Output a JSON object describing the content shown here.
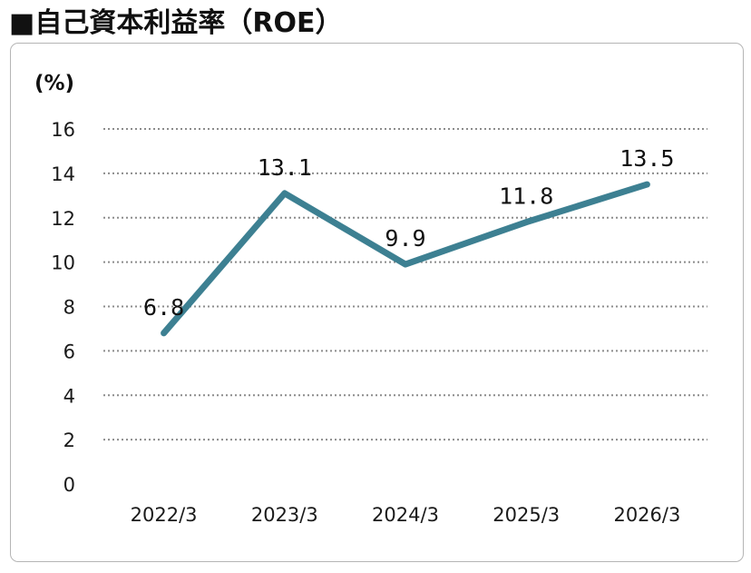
{
  "title": "■自己資本利益率（ROE）",
  "chart_data": {
    "type": "line",
    "title": "■自己資本利益率（ROE）",
    "ylabel": "(%)",
    "xlabel": "",
    "categories": [
      "2022/3",
      "2023/3",
      "2024/3",
      "2025/3",
      "2026/3"
    ],
    "series": [
      {
        "values": [
          6.8,
          13.1,
          9.9,
          11.8,
          13.5
        ],
        "labels": [
          "6.8",
          "13.1",
          "9.9",
          "11.8",
          "13.5"
        ]
      }
    ],
    "yticks": [
      "0",
      "2",
      "4",
      "6",
      "8",
      "10",
      "12",
      "14",
      "16"
    ],
    "ylim": [
      0,
      16
    ],
    "grid": true,
    "legend": "none",
    "line_color": "#3d8092",
    "grid_color": "#8c8c8c"
  }
}
